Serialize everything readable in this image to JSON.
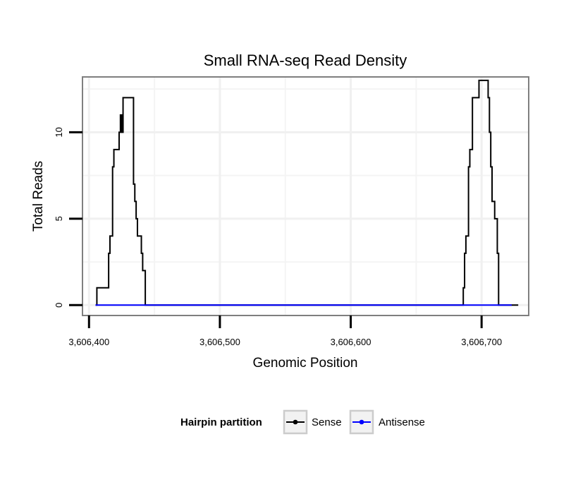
{
  "chart_data": {
    "type": "line",
    "title": "Small RNA-seq Read Density",
    "xlabel": "Genomic Position",
    "ylabel": "Total Reads",
    "xlim": [
      3606395,
      3606736
    ],
    "ylim": [
      -0.6,
      13.2
    ],
    "x_ticks": [
      3606400,
      3606500,
      3606600,
      3606700
    ],
    "x_tick_labels": [
      "3,606,400",
      "3,606,500",
      "3,606,600",
      "3,606,700"
    ],
    "y_ticks": [
      0,
      5,
      10
    ],
    "y_tick_labels": [
      "0",
      "5",
      "10"
    ],
    "grid": true,
    "legend": {
      "title": "Hairpin partition",
      "position": "bottom",
      "entries": [
        {
          "name": "Sense",
          "color": "#000000"
        },
        {
          "name": "Antisense",
          "color": "#0000ff"
        }
      ]
    },
    "series": [
      {
        "name": "Sense",
        "color": "#000000",
        "step": true,
        "points": [
          [
            3606405,
            0
          ],
          [
            3606406,
            1
          ],
          [
            3606415,
            3
          ],
          [
            3606416,
            4
          ],
          [
            3606418,
            8
          ],
          [
            3606419,
            9
          ],
          [
            3606423,
            10
          ],
          [
            3606424,
            11
          ],
          [
            3606425,
            10
          ],
          [
            3606426,
            12
          ],
          [
            3606434,
            7
          ],
          [
            3606435,
            6
          ],
          [
            3606436,
            5
          ],
          [
            3606437,
            4
          ],
          [
            3606440,
            3
          ],
          [
            3606441,
            2
          ],
          [
            3606443,
            0
          ],
          [
            3606453,
            0
          ],
          [
            3606685,
            0
          ],
          [
            3606686,
            1
          ],
          [
            3606687,
            3
          ],
          [
            3606688,
            4
          ],
          [
            3606690,
            8
          ],
          [
            3606691,
            9
          ],
          [
            3606693,
            12
          ],
          [
            3606698,
            13
          ],
          [
            3606705,
            12
          ],
          [
            3606706,
            10
          ],
          [
            3606707,
            8
          ],
          [
            3606708,
            6
          ],
          [
            3606710,
            5
          ],
          [
            3606712,
            3
          ],
          [
            3606713,
            0
          ],
          [
            3606728,
            0
          ]
        ]
      },
      {
        "name": "Antisense",
        "color": "#0000ff",
        "step": false,
        "points": [
          [
            3606405,
            0
          ],
          [
            3606723,
            0
          ]
        ]
      }
    ]
  }
}
